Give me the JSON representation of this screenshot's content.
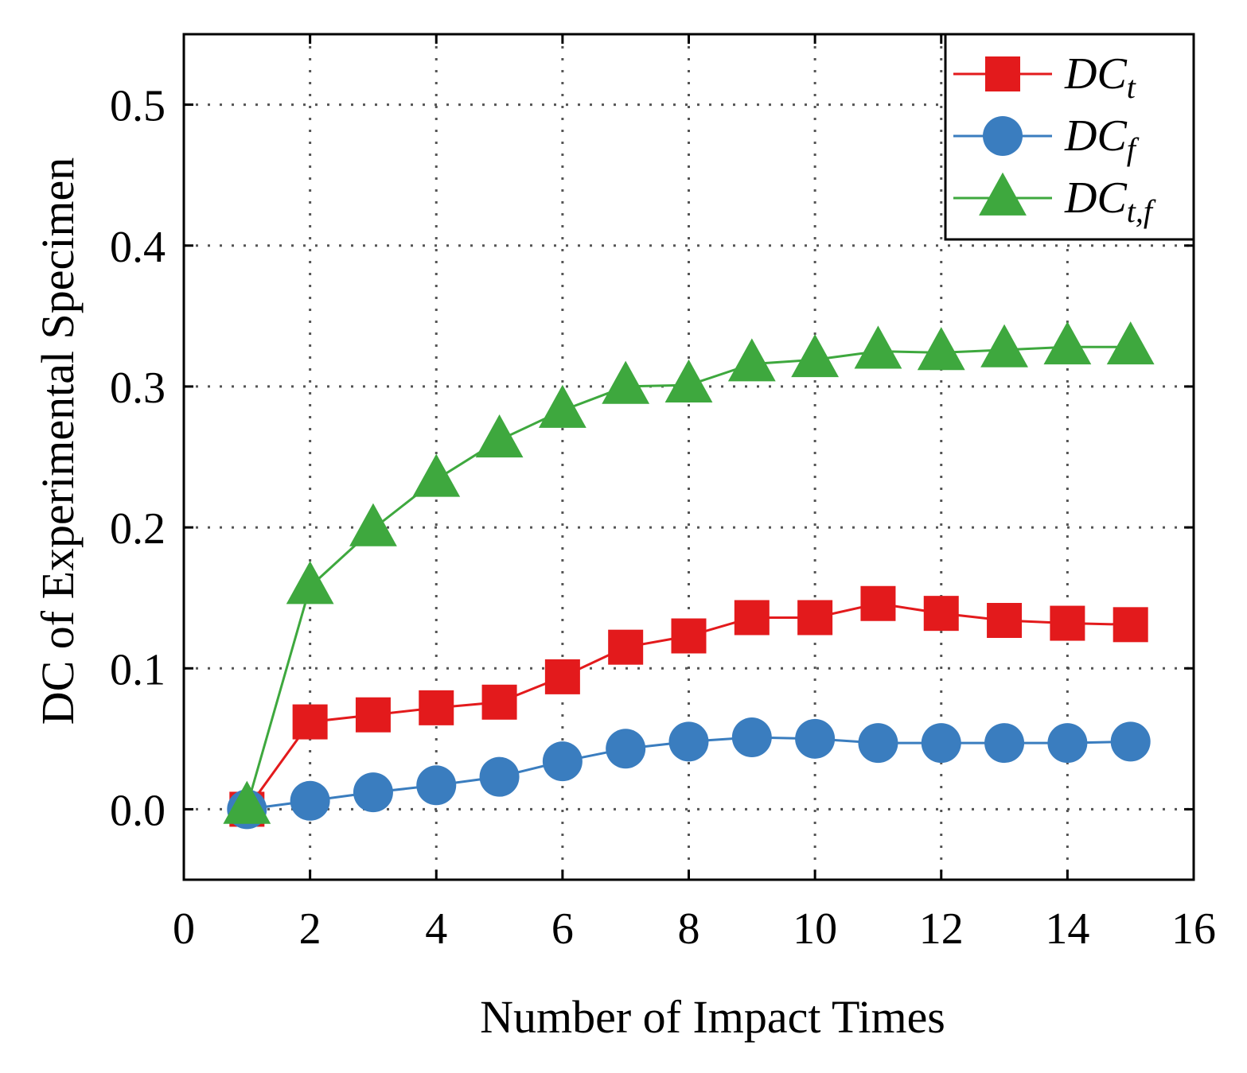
{
  "chart_data": {
    "type": "line",
    "title": "",
    "xlabel": "Number of Impact Times",
    "ylabel": "DC of Experimental Specimen",
    "xlim": [
      0,
      16
    ],
    "ylim": [
      -0.05,
      0.55
    ],
    "xticks": [
      0,
      2,
      4,
      6,
      8,
      10,
      12,
      14,
      16
    ],
    "xtick_labels": [
      "0",
      "2",
      "4",
      "6",
      "8",
      "10",
      "12",
      "14",
      "16"
    ],
    "yticks": [
      0.0,
      0.1,
      0.2,
      0.3,
      0.4,
      0.5
    ],
    "ytick_labels": [
      "0.0",
      "0.1",
      "0.2",
      "0.3",
      "0.4",
      "0.5"
    ],
    "grid": true,
    "legend_position": "top-right",
    "x": [
      1,
      2,
      3,
      4,
      5,
      6,
      7,
      8,
      9,
      10,
      11,
      12,
      13,
      14,
      15
    ],
    "series": [
      {
        "name": "DC_t",
        "label_main": "DC",
        "label_sub": "t",
        "color": "#e31a1c",
        "marker": "square",
        "values": [
          0.0,
          0.062,
          0.067,
          0.072,
          0.076,
          0.094,
          0.115,
          0.123,
          0.136,
          0.136,
          0.146,
          0.139,
          0.134,
          0.132,
          0.131
        ]
      },
      {
        "name": "DC_f",
        "label_main": "DC",
        "label_sub": "f",
        "color": "#3a7dbf",
        "marker": "circle",
        "values": [
          0.0,
          0.006,
          0.012,
          0.017,
          0.023,
          0.034,
          0.043,
          0.048,
          0.051,
          0.05,
          0.047,
          0.047,
          0.047,
          0.047,
          0.048
        ]
      },
      {
        "name": "DC_t,f",
        "label_main": "DC",
        "label_sub": "t,f",
        "color": "#3ea83e",
        "marker": "triangle",
        "values": [
          0.002,
          0.158,
          0.199,
          0.234,
          0.262,
          0.283,
          0.3,
          0.301,
          0.316,
          0.319,
          0.325,
          0.324,
          0.326,
          0.328,
          0.328
        ]
      }
    ]
  }
}
